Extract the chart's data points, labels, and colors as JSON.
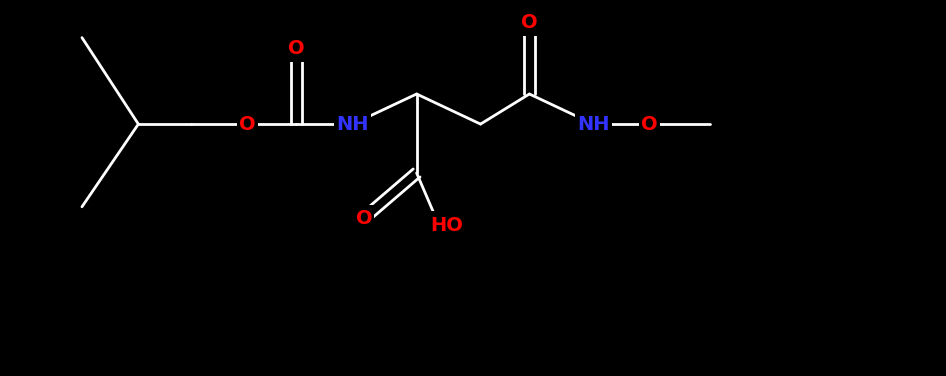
{
  "background_color": "#000000",
  "bond_color": "#ffffff",
  "O_color": "#ff0000",
  "N_color": "#3333ff",
  "figsize": [
    9.46,
    3.76
  ],
  "dpi": 100,
  "xlim": [
    -1,
    11
  ],
  "ylim": [
    -1.5,
    3.5
  ],
  "font_size": 14
}
